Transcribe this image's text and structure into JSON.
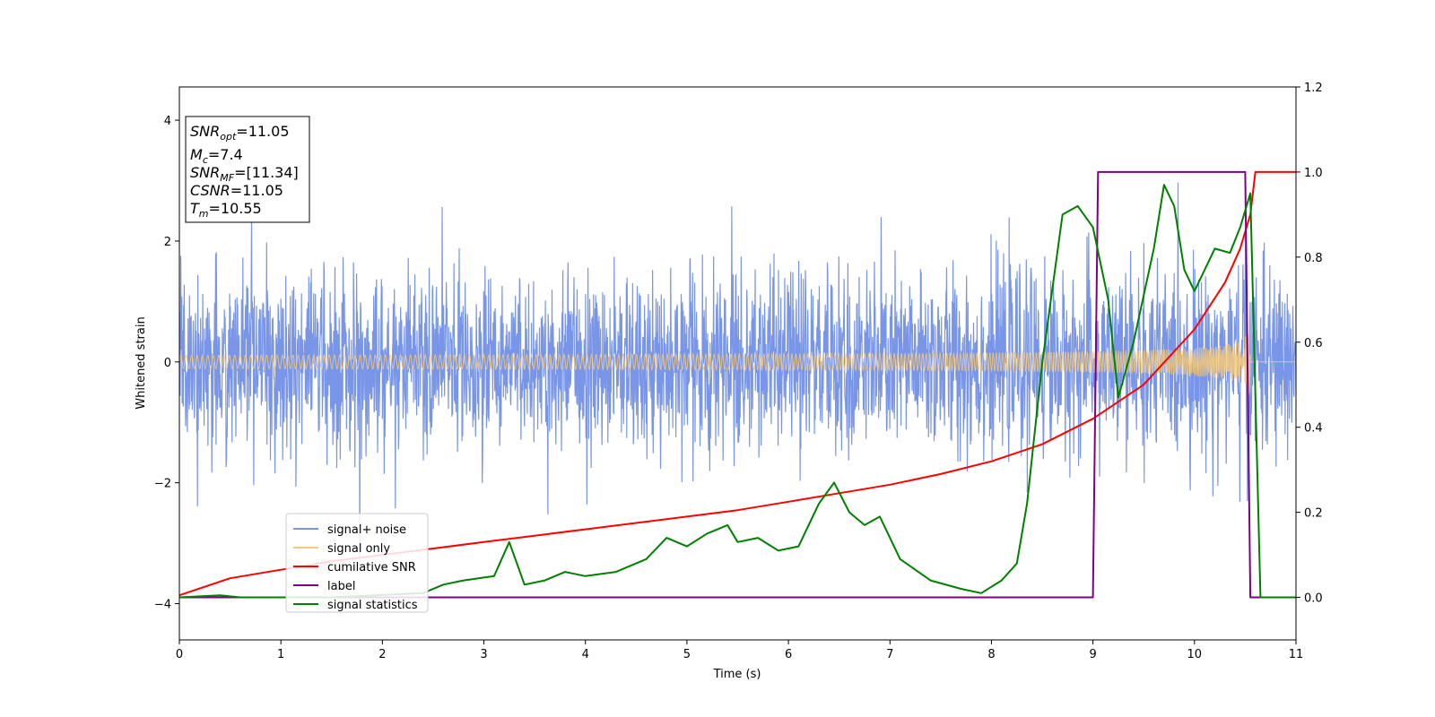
{
  "chart_data": {
    "type": "line",
    "xlabel": "Time (s)",
    "ylabel": "Whitened strain",
    "xlim": [
      0,
      11
    ],
    "ylim_left": [
      -4.6,
      4.55
    ],
    "ylim_right": [
      -0.1,
      1.2
    ],
    "x_ticks": [
      "0",
      "1",
      "2",
      "3",
      "4",
      "5",
      "6",
      "7",
      "8",
      "9",
      "10",
      "11"
    ],
    "y_ticks_left": [
      "−4",
      "−2",
      "0",
      "2",
      "4"
    ],
    "y_ticks_right": [
      "0.0",
      "0.2",
      "0.4",
      "0.6",
      "0.8",
      "1.0",
      "1.2"
    ],
    "y_tick_values_left": [
      -4,
      -2,
      0,
      2,
      4
    ],
    "y_tick_values_right": [
      0.0,
      0.2,
      0.4,
      0.6,
      0.8,
      1.0,
      1.2
    ],
    "x_tick_values": [
      0,
      1,
      2,
      3,
      4,
      5,
      6,
      7,
      8,
      9,
      10,
      11
    ],
    "annotation": {
      "snr_opt": {
        "sym": "SNR",
        "sub": "opt",
        "val": "=11.05"
      },
      "mc": {
        "sym": "M",
        "sub": "c",
        "val": "=7.4"
      },
      "snr_mf": {
        "sym": "SNR",
        "sub": "MF",
        "val": "=[11.34]"
      },
      "csnr": {
        "sym": "CSNR",
        "sub": "",
        "val": "=11.05"
      },
      "tm": {
        "sym": "T",
        "sub": "m",
        "val": "=10.55"
      }
    },
    "legend_position": "lower-left",
    "series": [
      {
        "name": "signal+ noise",
        "color": "#7895e8",
        "axis": "left",
        "kind": "noise",
        "std": 0.72,
        "extent": [
          0,
          11
        ]
      },
      {
        "name": "signal only",
        "color": "#f5c97a",
        "axis": "left",
        "kind": "chirp",
        "tc": 10.55,
        "amp_ref": 0.78
      },
      {
        "name": "cumilative SNR",
        "color": "#ff0000",
        "axis": "right",
        "x": [
          0,
          0.5,
          1,
          1.5,
          2,
          2.5,
          3,
          3.5,
          4,
          4.5,
          5,
          5.5,
          6,
          6.5,
          7,
          7.5,
          8,
          8.5,
          9,
          9.5,
          10,
          10.3,
          10.45,
          10.5,
          10.55,
          10.6,
          11
        ],
        "values": [
          0.005,
          0.045,
          0.065,
          0.085,
          0.1,
          0.115,
          0.13,
          0.145,
          0.16,
          0.175,
          0.19,
          0.205,
          0.225,
          0.245,
          0.265,
          0.29,
          0.32,
          0.36,
          0.42,
          0.5,
          0.63,
          0.74,
          0.82,
          0.86,
          0.9,
          1.0,
          1.0
        ]
      },
      {
        "name": "label",
        "color": "#800080",
        "axis": "right",
        "x": [
          0,
          9.0,
          9.05,
          10.5,
          10.55,
          10.6,
          11
        ],
        "values": [
          0,
          0,
          1,
          1,
          0,
          0,
          0
        ]
      },
      {
        "name": "signal statistics",
        "color": "#008000",
        "axis": "right",
        "x": [
          0,
          0.4,
          0.6,
          1.5,
          2.4,
          2.6,
          2.8,
          3.1,
          3.25,
          3.4,
          3.6,
          3.8,
          4.0,
          4.3,
          4.6,
          4.8,
          5.0,
          5.2,
          5.4,
          5.5,
          5.7,
          5.9,
          6.1,
          6.3,
          6.45,
          6.6,
          6.75,
          6.9,
          7.1,
          7.4,
          7.7,
          7.9,
          8.1,
          8.25,
          8.35,
          8.5,
          8.7,
          8.85,
          9.0,
          9.15,
          9.25,
          9.4,
          9.6,
          9.7,
          9.8,
          9.9,
          10.0,
          10.2,
          10.35,
          10.45,
          10.55,
          10.65,
          11
        ],
        "values": [
          0.0,
          0.005,
          0.0,
          0.0,
          0.01,
          0.03,
          0.04,
          0.05,
          0.13,
          0.03,
          0.04,
          0.06,
          0.05,
          0.06,
          0.09,
          0.14,
          0.12,
          0.15,
          0.17,
          0.13,
          0.14,
          0.11,
          0.12,
          0.22,
          0.27,
          0.2,
          0.17,
          0.19,
          0.09,
          0.04,
          0.02,
          0.01,
          0.04,
          0.08,
          0.22,
          0.55,
          0.9,
          0.92,
          0.87,
          0.7,
          0.47,
          0.6,
          0.82,
          0.97,
          0.92,
          0.77,
          0.72,
          0.82,
          0.81,
          0.87,
          0.95,
          0.0,
          0.0
        ]
      }
    ]
  }
}
